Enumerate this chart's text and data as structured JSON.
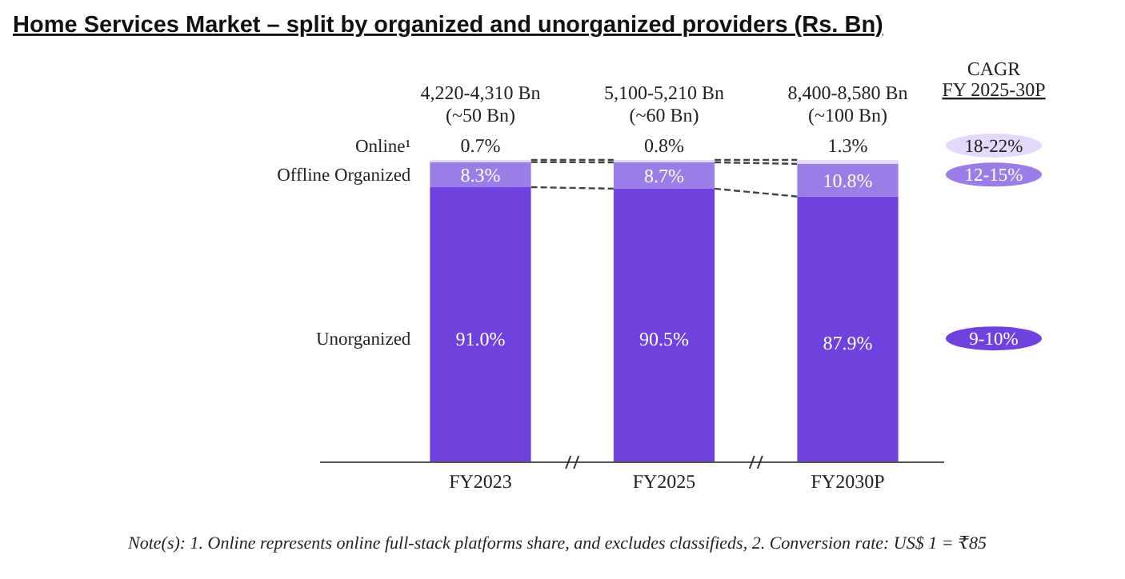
{
  "chart_data": {
    "type": "bar",
    "stacked": true,
    "title": "Home Services Market – split by organized and unorganized providers (Rs. Bn)",
    "categories": [
      "FY2023",
      "FY2025",
      "FY2030P"
    ],
    "series": [
      {
        "name": "Unorganized",
        "color": "#6f42e0",
        "values": [
          91.0,
          90.5,
          87.9
        ],
        "value_labels": [
          "91.0%",
          "90.5%",
          "87.9%"
        ]
      },
      {
        "name": "Offline Organized",
        "color": "#9b7de8",
        "values": [
          8.3,
          8.7,
          10.8
        ],
        "value_labels": [
          "8.3%",
          "8.7%",
          "10.8%"
        ]
      },
      {
        "name": "Online¹",
        "color": "#e3dafb",
        "values": [
          0.7,
          0.8,
          1.3
        ],
        "value_labels": [
          "0.7%",
          "0.8%",
          "1.3%"
        ]
      }
    ],
    "ylim": [
      0,
      100
    ],
    "tick_labels": "x",
    "totals": [
      "4,220-4,310 Bn\n(~50 Bn)",
      "5,100-5,210 Bn\n(~60 Bn)",
      "8,400-8,580 Bn\n(~100 Bn)"
    ],
    "annotations": [
      "CAGR",
      "FY 2025-30P",
      "18-22%",
      "12-15%",
      "9-10%",
      "Note(s): 1. Online represents online full-stack platforms share, and excludes classifieds, 2. Conversion rate: US$ 1 = ₹85"
    ]
  }
}
